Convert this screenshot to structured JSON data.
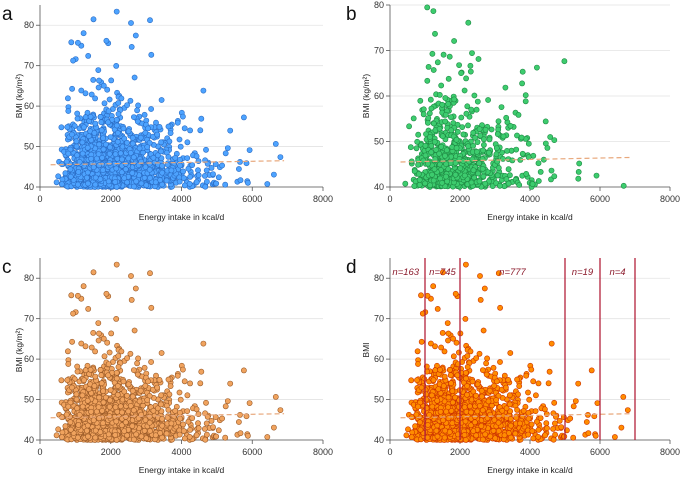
{
  "figure": {
    "panels": [
      "a",
      "b",
      "c",
      "d"
    ]
  },
  "chart_data": [
    {
      "panel": "a",
      "type": "scatter",
      "xlabel": "Energy intake in kcal/d",
      "ylabel": "BMI (kg/m²)",
      "xlim": [
        0,
        8000
      ],
      "ylim": [
        40,
        85
      ],
      "xticks": [
        0,
        2000,
        4000,
        6000,
        8000
      ],
      "yticks": [
        40,
        50,
        60,
        70,
        80
      ],
      "marker_color": "#4da3ff",
      "marker_edge": "#2b6cc4",
      "trend": {
        "x": [
          300,
          6900
        ],
        "y": [
          45.5,
          46.5
        ],
        "color": "#e8a87c"
      },
      "n_points": 1708,
      "grid": true
    },
    {
      "panel": "b",
      "type": "scatter",
      "xlabel": "Energy intake in kcal/d",
      "ylabel": "BMI (kg/m²)",
      "xlim": [
        0,
        8000
      ],
      "ylim": [
        40,
        80
      ],
      "xticks": [
        0,
        2000,
        4000,
        6000,
        8000
      ],
      "yticks": [
        40,
        50,
        60,
        70,
        80
      ],
      "marker_color": "#3dcc6e",
      "marker_edge": "#1f8a44",
      "trend": {
        "x": [
          300,
          6900
        ],
        "y": [
          45.5,
          46.5
        ],
        "color": "#e8a87c"
      },
      "n_points": 800,
      "grid": true
    },
    {
      "panel": "c",
      "type": "scatter",
      "xlabel": "Energy intake in kcal/d",
      "ylabel": "BMI (kg/m²)",
      "xlim": [
        0,
        8000
      ],
      "ylim": [
        40,
        85
      ],
      "xticks": [
        0,
        2000,
        4000,
        6000,
        8000
      ],
      "yticks": [
        40,
        50,
        60,
        70,
        80
      ],
      "marker_color": "#f0a35e",
      "marker_edge": "#9a5a28",
      "trend": {
        "x": [
          300,
          6900
        ],
        "y": [
          45.5,
          46.5
        ],
        "color": "#e8a87c"
      },
      "n_points": 1708,
      "grid": true
    },
    {
      "panel": "d",
      "type": "scatter",
      "xlabel": "Energy intake in kcal/d",
      "ylabel": "BMI",
      "xlim": [
        0,
        8000
      ],
      "ylim": [
        40,
        85
      ],
      "xticks": [
        0,
        2000,
        4000,
        6000,
        8000
      ],
      "yticks": [
        40,
        50,
        60,
        70,
        80
      ],
      "marker_color": "#ff8c00",
      "marker_edge": "#cc3300",
      "trend": {
        "x": [
          300,
          6900
        ],
        "y": [
          45.5,
          46.5
        ],
        "color": "#e8a87c"
      },
      "vlines": [
        1000,
        2000,
        5000,
        6000,
        7000
      ],
      "vline_color": "#b3223c",
      "counts": [
        {
          "label": "n=163",
          "x": 450
        },
        {
          "label": "n=745",
          "x": 1500
        },
        {
          "label": "n=777",
          "x": 3500
        },
        {
          "label": "n=19",
          "x": 5500
        },
        {
          "label": "n=4",
          "x": 6500
        }
      ],
      "n_points": 1708,
      "grid": true
    }
  ]
}
